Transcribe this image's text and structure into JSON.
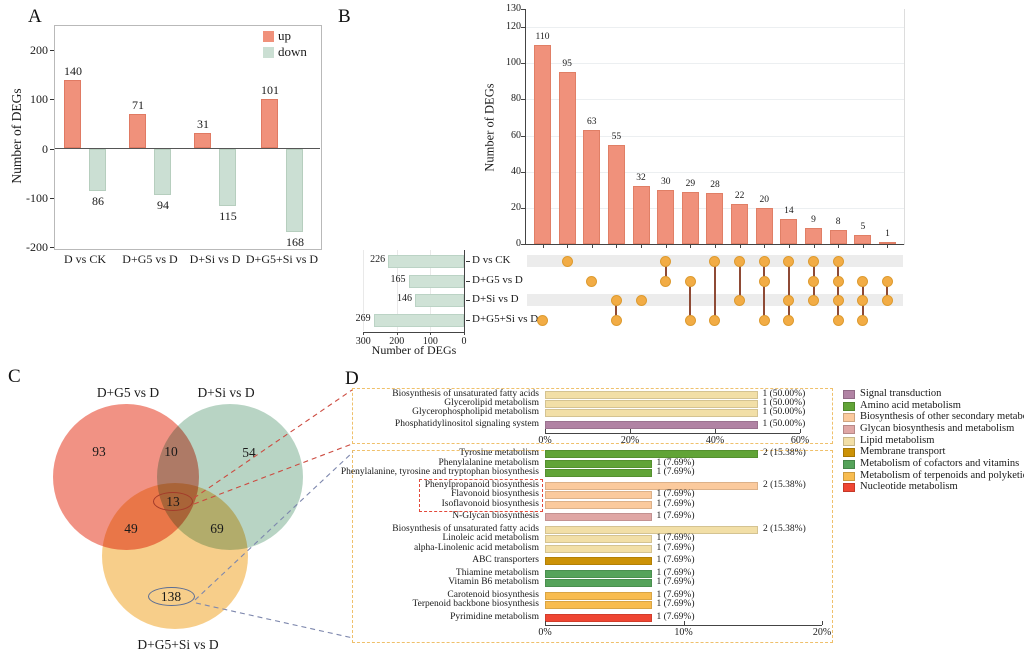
{
  "panels": {
    "a_label": "A",
    "b_label": "B",
    "c_label": "C",
    "d_label": "D"
  },
  "chart_data": [
    {
      "id": "A",
      "type": "bar",
      "orientation": "vertical-diverging",
      "ylabel": "Number of DEGs",
      "ylim": [
        -200,
        200
      ],
      "yticks": [
        200,
        100,
        0,
        -100,
        -200
      ],
      "categories": [
        "D vs CK",
        "D+G5 vs D",
        "D+Si vs D",
        "D+G5+Si vs D"
      ],
      "series": [
        {
          "name": "up",
          "color": "#F0917B",
          "values": [
            140,
            71,
            31,
            101
          ]
        },
        {
          "name": "down",
          "color": "#CBDFD3",
          "values": [
            86,
            94,
            115,
            168
          ]
        }
      ],
      "legend_position": "top-right",
      "grid": false
    },
    {
      "id": "B",
      "type": "upset",
      "ylabel": "Number of DEGs",
      "ylim": [
        0,
        130
      ],
      "yticks": [
        0,
        20,
        40,
        60,
        80,
        100,
        120,
        130
      ],
      "intersection_sizes": [
        110,
        95,
        63,
        55,
        32,
        30,
        29,
        28,
        22,
        20,
        14,
        9,
        8,
        5,
        1
      ],
      "intersection_sets": [
        [
          3
        ],
        [
          0
        ],
        [
          1
        ],
        [
          2,
          3
        ],
        [
          2
        ],
        [
          0,
          1
        ],
        [
          1,
          3
        ],
        [
          0,
          3
        ],
        [
          0,
          2
        ],
        [
          0,
          1,
          3
        ],
        [
          0,
          2,
          3
        ],
        [
          0,
          1,
          2
        ],
        [
          0,
          1,
          2,
          3
        ],
        [
          1,
          2,
          3
        ],
        [
          1,
          2
        ]
      ],
      "sets": [
        {
          "name": "D vs CK",
          "size": 226
        },
        {
          "name": "D+G5 vs D",
          "size": 165
        },
        {
          "name": "D+Si vs D",
          "size": 146
        },
        {
          "name": "D+G5+Si vs D",
          "size": 269
        }
      ],
      "set_axis": {
        "label": "Number of DEGs",
        "ticks": [
          300,
          200,
          100,
          0
        ]
      },
      "colors": {
        "bar": "#F0917B",
        "bar_edge": "#E07F66",
        "dot": "#F2AC45",
        "dot_edge": "#DD9B30",
        "connector": "#8E4A35",
        "band": "#ECECEC",
        "setbar": "#CFE2D6",
        "setbar_edge": "#BBD3C5"
      }
    },
    {
      "id": "C",
      "type": "venn",
      "set_titles": [
        "D+G5 vs D",
        "D+Si vs D",
        "D+G5+Si vs D"
      ],
      "regions": {
        "g5_only": 93,
        "si_only": 54,
        "g5si_only": 138,
        "g5_si": 10,
        "g5_g5si": 49,
        "si_g5si": 69,
        "all_three": 13
      },
      "colors": {
        "g5": "#F0897A",
        "si": "#B2D1BF",
        "g5si": "#F7CA80",
        "ring_13": "#A33B2A",
        "ring_138": "#5B6D94",
        "line_red": "#CC4B40",
        "line_blue": "#7D87AD"
      }
    },
    {
      "id": "D",
      "type": "bar-h-group",
      "charts": [
        {
          "xticks": [
            "0%",
            "20%",
            "40%",
            "60%"
          ],
          "xtick_vals": [
            0,
            20,
            40,
            60
          ],
          "xmax": 60,
          "rows": [
            {
              "label": "Biosynthesis of unsaturated fatty acids",
              "count": 1,
              "pct": 50.0,
              "pct_label": "1 (50.00%)",
              "category": "Lipid metabolism"
            },
            {
              "label": "Glycerolipid metabolism",
              "count": 1,
              "pct": 50.0,
              "pct_label": "1 (50.00%)",
              "category": "Lipid metabolism"
            },
            {
              "label": "Glycerophospholipid metabolism",
              "count": 1,
              "pct": 50.0,
              "pct_label": "1 (50.00%)",
              "category": "Lipid metabolism"
            },
            {
              "label": "Phosphatidylinositol signaling system",
              "count": 1,
              "pct": 50.0,
              "pct_label": "1 (50.00%)",
              "category": "Signal transduction"
            }
          ]
        },
        {
          "xticks": [
            "0%",
            "10%",
            "20%"
          ],
          "xtick_vals": [
            0,
            10,
            20
          ],
          "xmax": 20,
          "highlight_rows": [
            3,
            4,
            5
          ],
          "rows": [
            {
              "label": "Tyrosine metabolism",
              "count": 2,
              "pct": 15.38,
              "pct_label": "2 (15.38%)",
              "category": "Amino acid metabolism"
            },
            {
              "label": "Phenylalanine metabolism",
              "count": 1,
              "pct": 7.69,
              "pct_label": "1 (7.69%)",
              "category": "Amino acid metabolism"
            },
            {
              "label": "Phenylalanine, tyrosine and tryptophan biosynthesis",
              "count": 1,
              "pct": 7.69,
              "pct_label": "1 (7.69%)",
              "category": "Amino acid metabolism"
            },
            {
              "label": "Phenylpropanoid biosynthesis",
              "count": 2,
              "pct": 15.38,
              "pct_label": "2 (15.38%)",
              "category": "Biosynthesis of other secondary metabolites"
            },
            {
              "label": "Flavonoid biosynthesis",
              "count": 1,
              "pct": 7.69,
              "pct_label": "1 (7.69%)",
              "category": "Biosynthesis of other secondary metabolites"
            },
            {
              "label": "Isoflavonoid biosynthesis",
              "count": 1,
              "pct": 7.69,
              "pct_label": "1 (7.69%)",
              "category": "Biosynthesis of other secondary metabolites"
            },
            {
              "label": "N-Glycan biosynthesis",
              "count": 1,
              "pct": 7.69,
              "pct_label": "1 (7.69%)",
              "category": "Glycan biosynthesis and metabolism"
            },
            {
              "label": "Biosynthesis of unsaturated fatty acids",
              "count": 2,
              "pct": 15.38,
              "pct_label": "2 (15.38%)",
              "category": "Lipid metabolism"
            },
            {
              "label": "Linoleic acid metabolism",
              "count": 1,
              "pct": 7.69,
              "pct_label": "1 (7.69%)",
              "category": "Lipid metabolism"
            },
            {
              "label": "alpha-Linolenic acid metabolism",
              "count": 1,
              "pct": 7.69,
              "pct_label": "1 (7.69%)",
              "category": "Lipid metabolism"
            },
            {
              "label": "ABC transporters",
              "count": 1,
              "pct": 7.69,
              "pct_label": "1 (7.69%)",
              "category": "Membrane transport"
            },
            {
              "label": "Thiamine metabolism",
              "count": 1,
              "pct": 7.69,
              "pct_label": "1 (7.69%)",
              "category": "Metabolism of cofactors and vitamins"
            },
            {
              "label": "Vitamin B6 metabolism",
              "count": 1,
              "pct": 7.69,
              "pct_label": "1 (7.69%)",
              "category": "Metabolism of cofactors and vitamins"
            },
            {
              "label": "Carotenoid biosynthesis",
              "count": 1,
              "pct": 7.69,
              "pct_label": "1 (7.69%)",
              "category": "Metabolism of terpenoids and polyketides"
            },
            {
              "label": "Terpenoid backbone biosynthesis",
              "count": 1,
              "pct": 7.69,
              "pct_label": "1 (7.69%)",
              "category": "Metabolism of terpenoids and polyketides"
            },
            {
              "label": "Pyrimidine metabolism",
              "count": 1,
              "pct": 7.69,
              "pct_label": "1 (7.69%)",
              "category": "Nucleotide metabolism"
            }
          ]
        }
      ],
      "legend": [
        {
          "label": "Signal transduction",
          "color": "#B183A4"
        },
        {
          "label": "Amino acid metabolism",
          "color": "#61A437"
        },
        {
          "label": "Biosynthesis of other secondary metabolites",
          "color": "#FBCA9D"
        },
        {
          "label": "Glycan biosynthesis and metabolism",
          "color": "#DFA7A5"
        },
        {
          "label": "Lipid metabolism",
          "color": "#F2DFA7"
        },
        {
          "label": "Membrane transport",
          "color": "#CC9207"
        },
        {
          "label": "Metabolism of cofactors and vitamins",
          "color": "#55A35A"
        },
        {
          "label": "Metabolism of terpenoids and polyketides",
          "color": "#F8BC4F"
        },
        {
          "label": "Nucleotide metabolism",
          "color": "#EF4633"
        }
      ],
      "box_border_color": "#EFC06B",
      "highlight_border_color": "#E2493B"
    }
  ]
}
